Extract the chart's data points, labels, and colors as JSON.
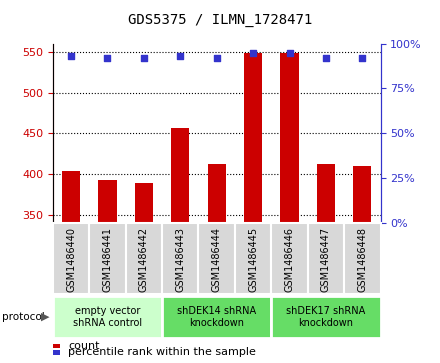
{
  "title": "GDS5375 / ILMN_1728471",
  "samples": [
    "GSM1486440",
    "GSM1486441",
    "GSM1486442",
    "GSM1486443",
    "GSM1486444",
    "GSM1486445",
    "GSM1486446",
    "GSM1486447",
    "GSM1486448"
  ],
  "counts": [
    404,
    393,
    389,
    457,
    412,
    549,
    549,
    412,
    410
  ],
  "percentile_ranks": [
    93,
    92,
    92,
    93,
    92,
    95,
    95,
    92,
    92
  ],
  "ylim_left": [
    340,
    560
  ],
  "ylim_right": [
    0,
    100
  ],
  "yticks_left": [
    350,
    400,
    450,
    500,
    550
  ],
  "yticks_right": [
    0,
    25,
    50,
    75,
    100
  ],
  "bar_color": "#cc0000",
  "dot_color": "#3333cc",
  "bar_bottom": 340,
  "groups": [
    {
      "label": "empty vector\nshRNA control",
      "start": 0,
      "end": 3,
      "color": "#ccffcc"
    },
    {
      "label": "shDEK14 shRNA\nknockdown",
      "start": 3,
      "end": 6,
      "color": "#66dd66"
    },
    {
      "label": "shDEK17 shRNA\nknockdown",
      "start": 6,
      "end": 9,
      "color": "#66dd66"
    }
  ],
  "protocol_label": "protocol",
  "legend_count_label": "count",
  "legend_percentile_label": "percentile rank within the sample",
  "background_color": "#ffffff",
  "tick_label_fontsize": 7,
  "title_fontsize": 10
}
